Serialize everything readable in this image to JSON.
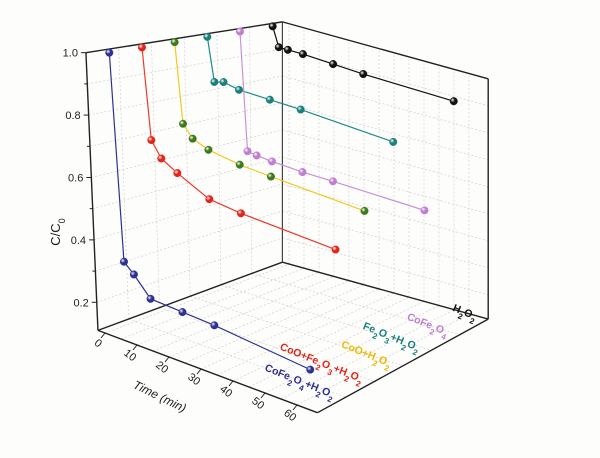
{
  "chart_data": {
    "type": "line3d",
    "title": "",
    "xlabel": "Time (min)",
    "ylabel": "C/C0",
    "ylabel_main": "C/C",
    "ylabel_sub": "0",
    "xlim": [
      0,
      60
    ],
    "ylim": [
      0.11,
      1.0
    ],
    "x_ticks": [
      "0",
      "10",
      "20",
      "30",
      "40",
      "50",
      "60"
    ],
    "y_ticks": [
      "0.2",
      "0.4",
      "0.6",
      "0.8",
      "1.0"
    ],
    "grid": true,
    "x": [
      0,
      2,
      5,
      10,
      20,
      30,
      60
    ],
    "series": [
      {
        "name": "CoFe2O4+H2O2",
        "line_color": "#2d3192",
        "marker_color": "#2d3192",
        "values": [
          1.0,
          0.33,
          0.3,
          0.24,
          0.235,
          0.23,
          0.2
        ]
      },
      {
        "name": "CoO+Fe2O3+H2O2",
        "line_color": "#ee3a2c",
        "marker_color": "#e2261c",
        "values": [
          1.0,
          0.7,
          0.65,
          0.62,
          0.57,
          0.56,
          0.55
        ]
      },
      {
        "name": "CoO+H2O2",
        "line_color": "#f4c91e",
        "marker_color": "#3c7a1c",
        "label_color": "#f0b800",
        "values": [
          1.0,
          0.73,
          0.69,
          0.67,
          0.655,
          0.65,
          0.64
        ]
      },
      {
        "name": "Fe2O3+H2O2",
        "line_color": "#1f8c88",
        "marker_color": "#1b807c",
        "values": [
          1.0,
          0.85,
          0.86,
          0.85,
          0.85,
          0.85,
          0.84
        ]
      },
      {
        "name": "CoFe2O4",
        "line_color": "#c793d4",
        "marker_color": "#c07fd0",
        "values": [
          1.0,
          0.58,
          0.575,
          0.57,
          0.565,
          0.565,
          0.56
        ]
      },
      {
        "name": "H2O2",
        "line_color": "#111111",
        "marker_color": "#111111",
        "values": [
          1.0,
          0.93,
          0.93,
          0.93,
          0.925,
          0.92,
          0.915
        ]
      }
    ]
  }
}
